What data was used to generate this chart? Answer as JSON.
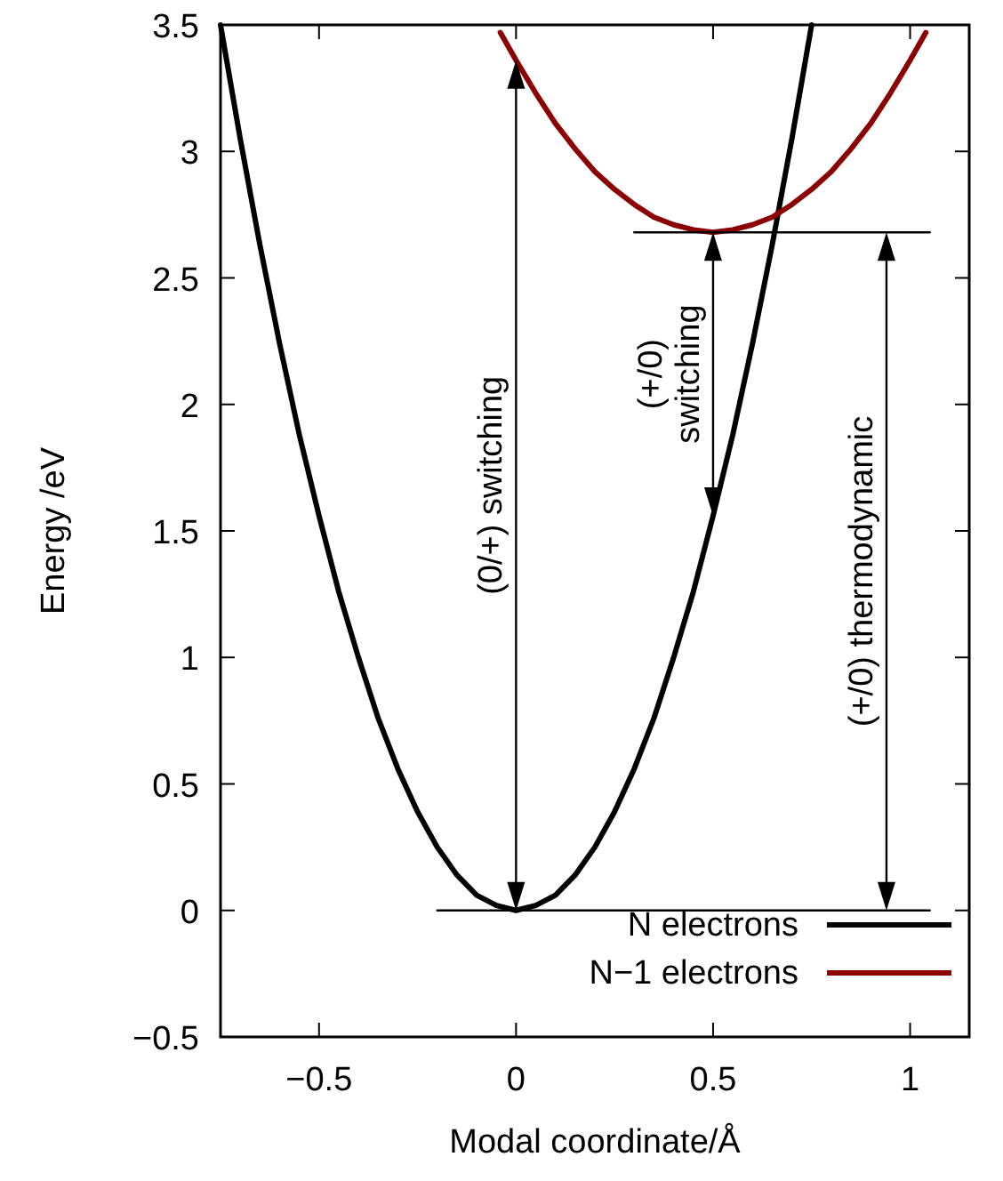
{
  "chart_data": {
    "type": "line",
    "xlabel": "Modal coordinate/Å",
    "ylabel": "Energy /eV",
    "xlim": [
      -0.75,
      1.15
    ],
    "xticks": [
      -0.5,
      0,
      0.5,
      1
    ],
    "ylim": [
      -0.5,
      3.5
    ],
    "yticks": [
      -0.5,
      0,
      0.5,
      1,
      1.5,
      2,
      2.5,
      3,
      3.5
    ],
    "grid": false,
    "legend": "bottom right",
    "marker": "none",
    "line_style": "solid",
    "series": [
      {
        "name": "N electrons",
        "color": "#000000",
        "x": [
          -0.75,
          -0.7,
          -0.65,
          -0.6,
          -0.55,
          -0.5,
          -0.45,
          -0.4,
          -0.35,
          -0.3,
          -0.25,
          -0.2,
          -0.15,
          -0.1,
          -0.05,
          0,
          0.05,
          0.1,
          0.15,
          0.2,
          0.25,
          0.3,
          0.35,
          0.4,
          0.45,
          0.5,
          0.55,
          0.6,
          0.65,
          0.7,
          0.75
        ],
        "values": [
          3.5,
          3.05,
          2.63,
          2.24,
          1.88,
          1.56,
          1.26,
          1.0,
          0.76,
          0.56,
          0.39,
          0.25,
          0.14,
          0.06,
          0.02,
          0,
          0.02,
          0.06,
          0.14,
          0.25,
          0.39,
          0.56,
          0.76,
          1.0,
          1.26,
          1.56,
          1.88,
          2.24,
          2.63,
          3.05,
          3.5
        ]
      },
      {
        "name": "N−1 electrons",
        "color": "#8b0000",
        "x": [
          -0.04,
          0,
          0.05,
          0.1,
          0.15,
          0.2,
          0.25,
          0.3,
          0.35,
          0.4,
          0.45,
          0.5,
          0.55,
          0.6,
          0.65,
          0.7,
          0.75,
          0.8,
          0.85,
          0.9,
          0.95,
          1.0,
          1.04
        ],
        "values": [
          3.47,
          3.36,
          3.23,
          3.11,
          3.01,
          2.92,
          2.85,
          2.79,
          2.74,
          2.71,
          2.69,
          2.68,
          2.69,
          2.71,
          2.74,
          2.79,
          2.85,
          2.92,
          3.01,
          3.11,
          3.23,
          3.36,
          3.47
        ]
      },
      {
        "color": "#000000",
        "x": [
          -0.2,
          1.05
        ],
        "values": [
          0,
          0
        ]
      },
      {
        "color": "#000000",
        "x": [
          0.3,
          1.05
        ],
        "values": [
          2.68,
          2.68
        ]
      }
    ],
    "ref_lines": [
      {
        "axis": "x",
        "value": 0,
        "label": "(0/+) switching"
      },
      {
        "axis": "x",
        "value": 0.94,
        "label": "(+/0) thermodynamic"
      }
    ],
    "annotations": [
      {
        "text": "(+/0)\nswitching",
        "x": 0.5,
        "y": 2.68
      }
    ]
  }
}
